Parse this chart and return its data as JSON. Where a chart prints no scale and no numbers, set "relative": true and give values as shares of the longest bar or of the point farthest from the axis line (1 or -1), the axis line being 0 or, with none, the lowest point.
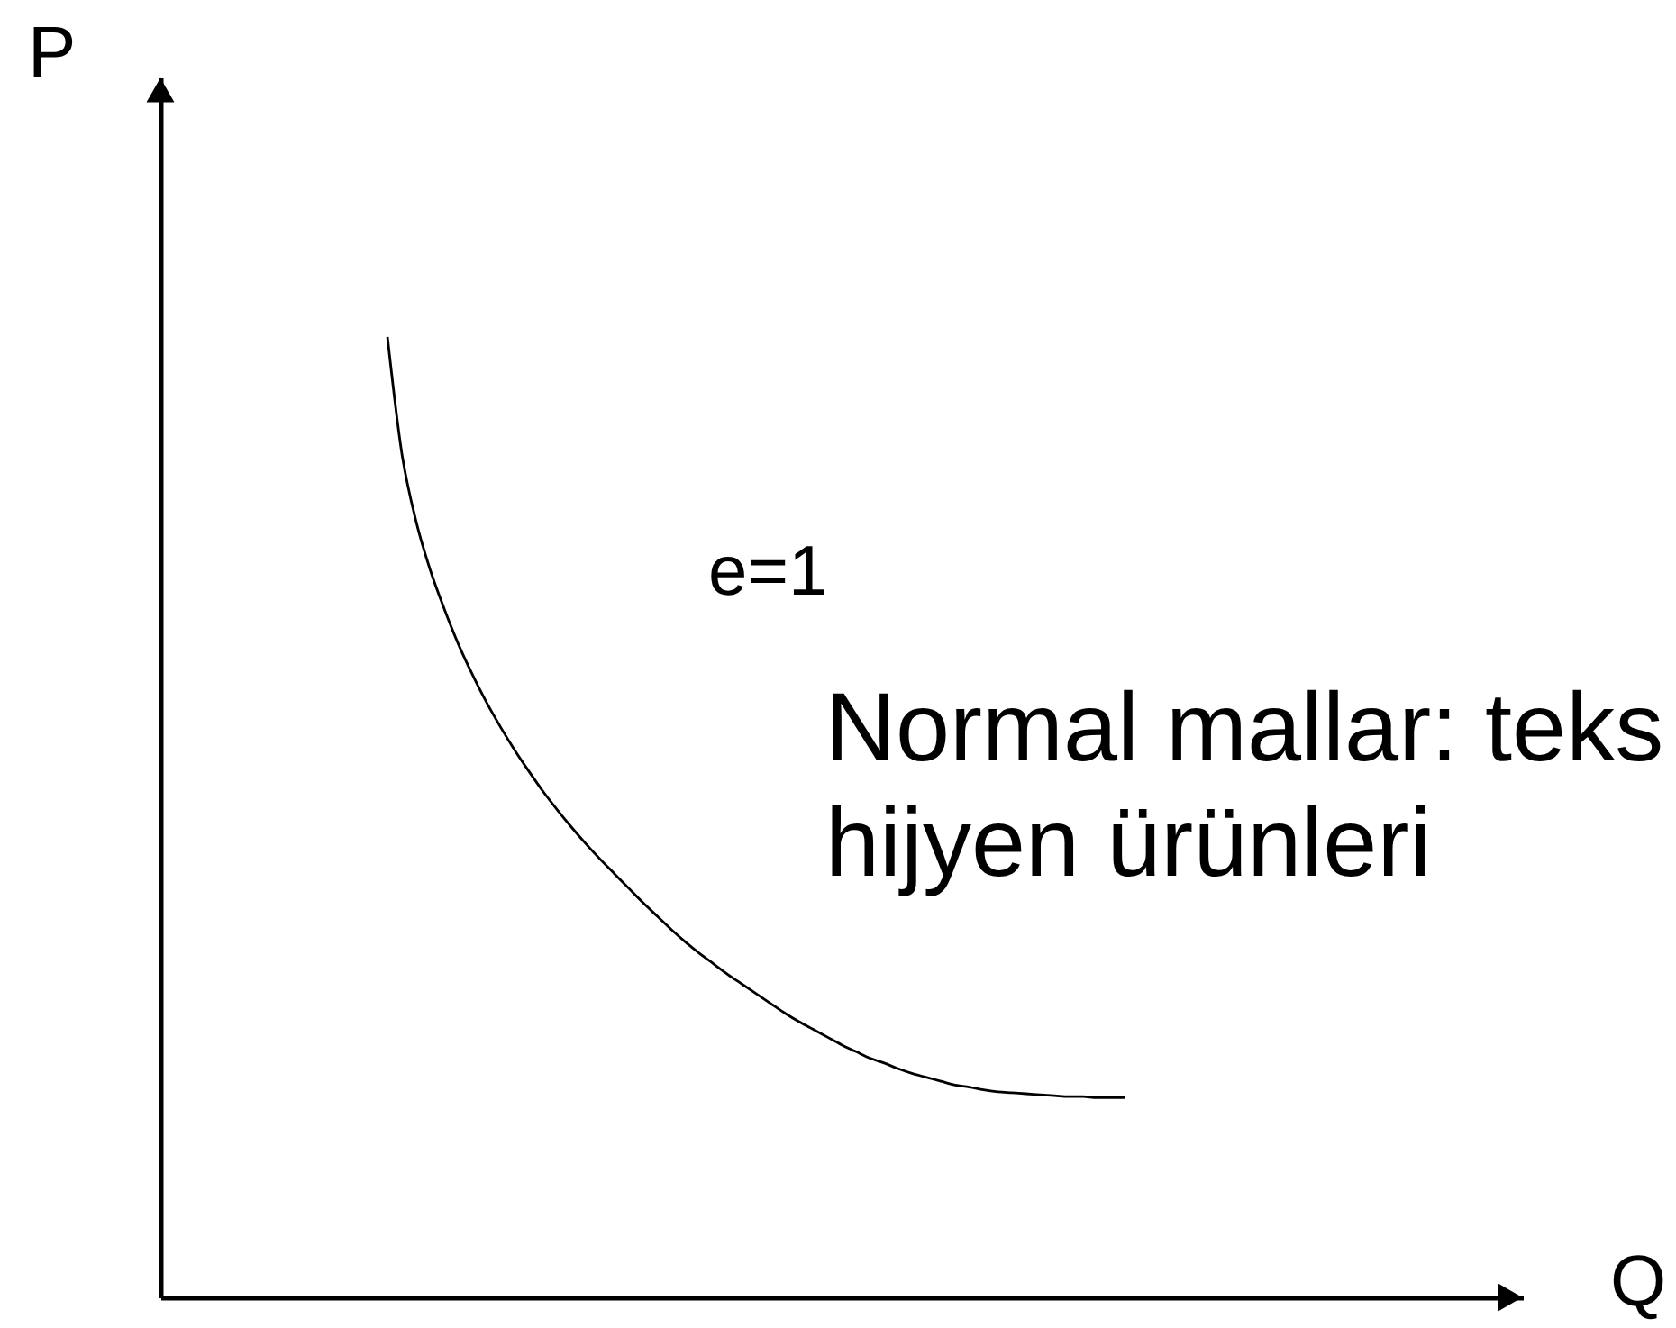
{
  "chart_data": {
    "type": "line",
    "relative": true,
    "xlabel": "Q",
    "ylabel": "P",
    "categories": [
      null,
      null,
      null,
      null,
      null,
      null,
      null,
      null,
      null,
      null,
      null,
      null,
      null,
      null,
      null,
      null,
      null,
      null,
      null,
      null,
      null,
      null,
      null,
      null,
      null,
      null,
      null,
      null,
      null,
      null,
      null,
      null,
      null,
      null,
      null,
      null,
      null,
      null,
      null,
      null,
      null,
      null,
      null,
      null,
      null,
      null,
      null,
      null,
      null,
      null,
      null,
      null,
      null,
      null,
      null,
      null,
      null,
      null,
      null,
      null,
      null,
      null,
      null,
      null,
      null,
      null,
      null,
      null,
      null,
      null,
      null,
      null,
      null,
      null,
      null,
      null,
      null,
      null,
      null,
      null,
      null,
      null,
      null,
      null,
      null,
      null,
      null,
      null,
      null,
      null,
      null,
      null,
      null,
      null,
      null,
      null,
      null
    ],
    "series": [
      {
        "color": "#000000",
        "values": [
          null,
          null,
          null,
          null,
          null,
          null,
          null,
          null,
          null,
          null,
          null,
          null,
          null,
          null,
          null,
          null,
          1,
          0.88,
          0.809,
          0.758,
          0.717,
          0.68,
          0.648,
          0.619,
          0.593,
          0.569,
          0.547,
          0.526,
          0.507,
          0.489,
          0.472,
          0.456,
          0.441,
          0.426,
          0.411,
          0.397,
          0.383,
          0.37,
          0.358,
          0.347,
          0.336,
          0.326,
          0.316,
          0.306,
          0.296,
          0.287,
          0.279,
          0.271,
          0.263,
          0.256,
          0.249,
          0.244,
          0.238,
          0.233,
          0.229,
          0.225,
          0.221,
          0.219,
          0.216,
          0.214,
          0.213,
          0.212,
          0.211,
          0.21,
          0.209,
          0.209,
          0.208,
          0.208,
          0.208,
          null,
          null,
          null,
          null,
          null,
          null,
          null,
          null,
          null,
          null,
          null,
          null,
          null,
          null,
          null,
          null,
          null,
          null,
          null,
          null,
          null,
          null,
          null,
          null,
          null,
          null,
          null,
          null
        ]
      }
    ],
    "annotations": [
      "e=1",
      "Normal mallar: teks\nhijyen ürünleri"
    ]
  }
}
